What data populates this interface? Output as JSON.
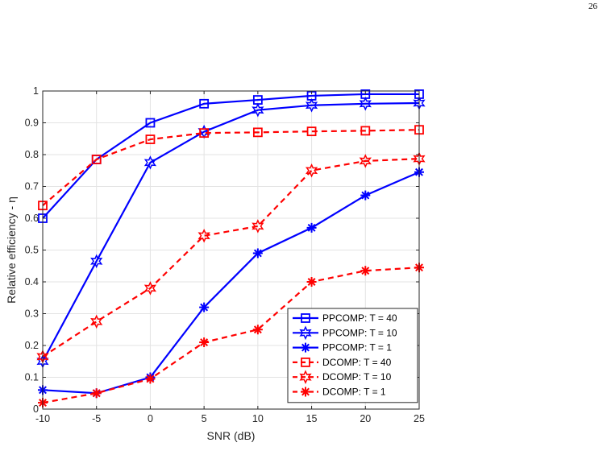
{
  "page_number": "26",
  "chart_data": {
    "type": "line",
    "title": "",
    "xlabel": "SNR (dB)",
    "ylabel": "Relative efficiency - η",
    "xlim": [
      -10,
      25
    ],
    "ylim": [
      0,
      1
    ],
    "x": [
      -10,
      -5,
      0,
      5,
      10,
      15,
      20,
      25
    ],
    "xticks": [
      "-10",
      "-5",
      "0",
      "5",
      "10",
      "15",
      "20",
      "25"
    ],
    "yticks": [
      "0",
      "0.1",
      "0.2",
      "0.3",
      "0.4",
      "0.5",
      "0.6",
      "0.7",
      "0.8",
      "0.9",
      "1"
    ],
    "grid": true,
    "legend_position": "bottom-right",
    "series": [
      {
        "name": "PPCOMP: T = 40",
        "color": "#0000ff",
        "dash": "solid",
        "marker": "square",
        "values": [
          0.6,
          0.785,
          0.9,
          0.96,
          0.972,
          0.985,
          0.99,
          0.99
        ]
      },
      {
        "name": "PPCOMP: T = 10",
        "color": "#0000ff",
        "dash": "solid",
        "marker": "hexagram",
        "values": [
          0.15,
          0.465,
          0.775,
          0.872,
          0.94,
          0.955,
          0.96,
          0.962
        ]
      },
      {
        "name": "PPCOMP: T = 1",
        "color": "#0000ff",
        "dash": "solid",
        "marker": "asterisk",
        "values": [
          0.06,
          0.05,
          0.1,
          0.32,
          0.49,
          0.57,
          0.672,
          0.745
        ]
      },
      {
        "name": "DCOMP: T = 40",
        "color": "#ff0000",
        "dash": "dashed",
        "marker": "square",
        "values": [
          0.64,
          0.785,
          0.848,
          0.868,
          0.87,
          0.873,
          0.875,
          0.878
        ]
      },
      {
        "name": "DCOMP: T = 10",
        "color": "#ff0000",
        "dash": "dashed",
        "marker": "hexagram",
        "values": [
          0.165,
          0.275,
          0.38,
          0.545,
          0.575,
          0.75,
          0.78,
          0.787
        ]
      },
      {
        "name": "DCOMP: T = 1",
        "color": "#ff0000",
        "dash": "dashed",
        "marker": "asterisk",
        "values": [
          0.02,
          0.05,
          0.095,
          0.21,
          0.25,
          0.4,
          0.435,
          0.445
        ]
      }
    ]
  }
}
